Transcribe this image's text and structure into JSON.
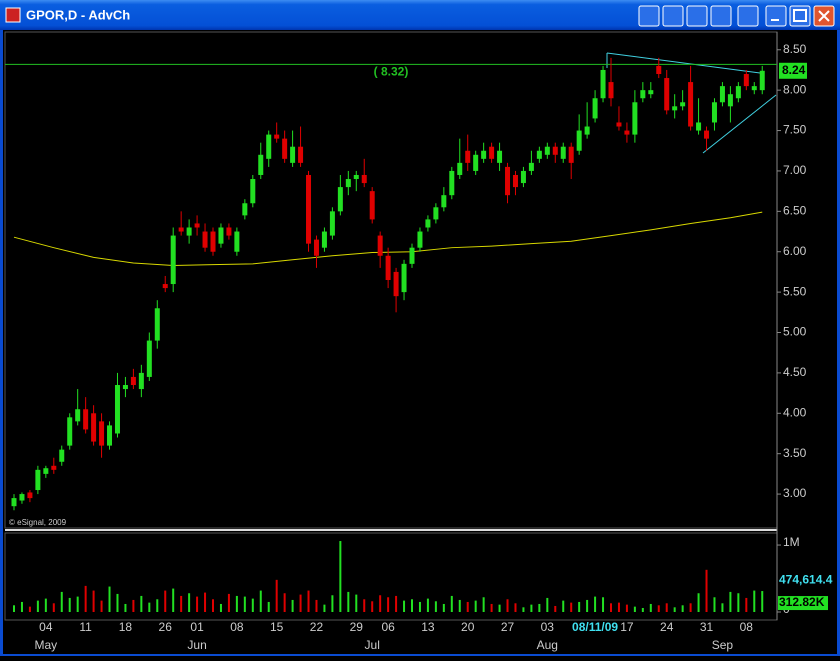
{
  "window_title": "GPOR,D - AdvCh",
  "chart_data": {
    "type": "candlestick",
    "watermark": "© eSignal, 2009",
    "up_color": "#22e022",
    "down_color": "#e00000",
    "categories": [
      null,
      null,
      null,
      null,
      "04",
      null,
      null,
      null,
      null,
      "11",
      null,
      null,
      null,
      null,
      "18",
      null,
      null,
      null,
      null,
      "26",
      null,
      null,
      null,
      "01",
      null,
      null,
      null,
      null,
      "08",
      null,
      null,
      null,
      null,
      "15",
      null,
      null,
      null,
      null,
      "22",
      null,
      null,
      null,
      null,
      "29",
      null,
      null,
      null,
      "06",
      null,
      null,
      null,
      null,
      "13",
      null,
      null,
      null,
      null,
      "20",
      null,
      null,
      null,
      null,
      "27",
      null,
      null,
      null,
      null,
      "03",
      null,
      null,
      null,
      null,
      null,
      "08/11/09",
      null,
      null,
      null,
      "17",
      null,
      null,
      null,
      null,
      "24",
      null,
      null,
      null,
      null,
      "31",
      null,
      null,
      null,
      null,
      "08",
      null,
      null
    ],
    "months": [
      null,
      null,
      null,
      null,
      "May",
      null,
      null,
      null,
      null,
      null,
      null,
      null,
      null,
      null,
      null,
      null,
      null,
      null,
      null,
      null,
      null,
      null,
      null,
      "Jun",
      null,
      null,
      null,
      null,
      null,
      null,
      null,
      null,
      null,
      null,
      null,
      null,
      null,
      null,
      null,
      null,
      null,
      null,
      null,
      null,
      null,
      "Jul",
      null,
      null,
      null,
      null,
      null,
      null,
      null,
      null,
      null,
      null,
      null,
      null,
      null,
      null,
      null,
      null,
      null,
      null,
      null,
      null,
      null,
      "Aug",
      null,
      null,
      null,
      null,
      null,
      null,
      null,
      null,
      null,
      null,
      null,
      null,
      null,
      null,
      null,
      null,
      null,
      null,
      null,
      null,
      null,
      "Sep",
      null,
      null,
      null,
      null,
      null
    ],
    "ohlc": [
      [
        2.85,
        3.0,
        2.8,
        2.95
      ],
      [
        2.92,
        3.02,
        2.88,
        3.0
      ],
      [
        3.02,
        3.05,
        2.9,
        2.95
      ],
      [
        3.05,
        3.35,
        3.0,
        3.3
      ],
      [
        3.25,
        3.35,
        3.2,
        3.32
      ],
      [
        3.35,
        3.45,
        3.25,
        3.3
      ],
      [
        3.4,
        3.6,
        3.35,
        3.55
      ],
      [
        3.6,
        4.0,
        3.55,
        3.95
      ],
      [
        3.9,
        4.3,
        3.85,
        4.05
      ],
      [
        4.05,
        4.2,
        3.75,
        3.8
      ],
      [
        4.0,
        4.1,
        3.6,
        3.65
      ],
      [
        3.9,
        4.0,
        3.45,
        3.6
      ],
      [
        3.6,
        3.9,
        3.55,
        3.85
      ],
      [
        3.75,
        4.5,
        3.7,
        4.35
      ],
      [
        4.3,
        4.45,
        4.2,
        4.35
      ],
      [
        4.45,
        4.55,
        4.3,
        4.35
      ],
      [
        4.3,
        4.6,
        4.2,
        4.5
      ],
      [
        4.45,
        5.0,
        4.4,
        4.9
      ],
      [
        4.9,
        5.4,
        4.8,
        5.3
      ],
      [
        5.6,
        5.7,
        5.5,
        5.55
      ],
      [
        5.6,
        6.3,
        5.5,
        6.2
      ],
      [
        6.3,
        6.5,
        6.2,
        6.25
      ],
      [
        6.2,
        6.4,
        6.1,
        6.3
      ],
      [
        6.35,
        6.45,
        6.2,
        6.3
      ],
      [
        6.25,
        6.35,
        6.0,
        6.05
      ],
      [
        6.25,
        6.3,
        5.95,
        6.0
      ],
      [
        6.1,
        6.35,
        6.05,
        6.3
      ],
      [
        6.3,
        6.35,
        6.15,
        6.2
      ],
      [
        6.0,
        6.3,
        5.95,
        6.25
      ],
      [
        6.45,
        6.65,
        6.4,
        6.6
      ],
      [
        6.6,
        6.95,
        6.55,
        6.9
      ],
      [
        6.95,
        7.35,
        6.9,
        7.2
      ],
      [
        7.15,
        7.5,
        7.05,
        7.45
      ],
      [
        7.45,
        7.6,
        7.35,
        7.4
      ],
      [
        7.4,
        7.5,
        7.1,
        7.15
      ],
      [
        7.1,
        7.5,
        7.05,
        7.3
      ],
      [
        7.3,
        7.55,
        7.05,
        7.1
      ],
      [
        6.95,
        7.0,
        6.0,
        6.1
      ],
      [
        6.15,
        6.2,
        5.8,
        5.95
      ],
      [
        6.05,
        6.3,
        6.0,
        6.25
      ],
      [
        6.2,
        6.55,
        6.15,
        6.5
      ],
      [
        6.5,
        6.95,
        6.45,
        6.8
      ],
      [
        6.8,
        7.0,
        6.7,
        6.9
      ],
      [
        6.9,
        7.0,
        6.75,
        6.95
      ],
      [
        6.95,
        7.15,
        6.8,
        6.85
      ],
      [
        6.75,
        6.8,
        6.35,
        6.4
      ],
      [
        6.2,
        6.25,
        5.8,
        5.95
      ],
      [
        5.95,
        6.05,
        5.55,
        5.65
      ],
      [
        5.75,
        5.8,
        5.25,
        5.45
      ],
      [
        5.5,
        5.9,
        5.4,
        5.85
      ],
      [
        5.85,
        6.1,
        5.8,
        6.05
      ],
      [
        6.05,
        6.3,
        6.0,
        6.25
      ],
      [
        6.3,
        6.45,
        6.25,
        6.4
      ],
      [
        6.4,
        6.6,
        6.35,
        6.55
      ],
      [
        6.55,
        6.8,
        6.5,
        6.7
      ],
      [
        6.7,
        7.05,
        6.65,
        7.0
      ],
      [
        6.95,
        7.4,
        6.9,
        7.1
      ],
      [
        7.25,
        7.45,
        7.0,
        7.1
      ],
      [
        7.0,
        7.25,
        6.95,
        7.2
      ],
      [
        7.15,
        7.35,
        7.1,
        7.25
      ],
      [
        7.3,
        7.35,
        7.1,
        7.15
      ],
      [
        7.1,
        7.35,
        7.0,
        7.25
      ],
      [
        7.05,
        7.1,
        6.6,
        6.7
      ],
      [
        6.95,
        7.0,
        6.7,
        6.8
      ],
      [
        6.85,
        7.05,
        6.8,
        7.0
      ],
      [
        7.0,
        7.25,
        6.95,
        7.1
      ],
      [
        7.15,
        7.3,
        7.1,
        7.25
      ],
      [
        7.2,
        7.35,
        7.15,
        7.3
      ],
      [
        7.3,
        7.35,
        7.1,
        7.2
      ],
      [
        7.15,
        7.35,
        7.1,
        7.3
      ],
      [
        7.3,
        7.35,
        6.9,
        7.1
      ],
      [
        7.25,
        7.7,
        7.2,
        7.5
      ],
      [
        7.45,
        7.85,
        7.4,
        7.55
      ],
      [
        7.65,
        8.0,
        7.6,
        7.9
      ],
      [
        7.9,
        8.3,
        7.85,
        8.25
      ],
      [
        8.1,
        8.4,
        7.8,
        7.9
      ],
      [
        7.6,
        7.8,
        7.5,
        7.55
      ],
      [
        7.5,
        7.6,
        7.35,
        7.45
      ],
      [
        7.45,
        8.0,
        7.35,
        7.85
      ],
      [
        7.9,
        8.1,
        7.85,
        8.0
      ],
      [
        7.95,
        8.1,
        7.9,
        8.0
      ],
      [
        8.3,
        8.4,
        8.15,
        8.2
      ],
      [
        8.15,
        8.25,
        7.7,
        7.75
      ],
      [
        7.75,
        7.95,
        7.65,
        7.8
      ],
      [
        7.8,
        8.0,
        7.75,
        7.85
      ],
      [
        8.1,
        8.3,
        7.5,
        7.55
      ],
      [
        7.5,
        7.9,
        7.45,
        7.6
      ],
      [
        7.5,
        7.55,
        7.25,
        7.4
      ],
      [
        7.6,
        7.9,
        7.5,
        7.85
      ],
      [
        7.85,
        8.1,
        7.8,
        8.05
      ],
      [
        7.8,
        8.05,
        7.6,
        7.95
      ],
      [
        7.9,
        8.1,
        7.85,
        8.05
      ],
      [
        8.2,
        8.25,
        8.0,
        8.05
      ],
      [
        8.0,
        8.1,
        7.95,
        8.05
      ],
      [
        8.0,
        8.3,
        7.95,
        8.24
      ]
    ],
    "ylim": [
      2.58,
      8.72
    ],
    "yticks": [
      {
        "value": 3,
        "label": "3.00"
      },
      {
        "value": 3.5,
        "label": "3.50"
      },
      {
        "value": 4,
        "label": "4.00"
      },
      {
        "value": 4.5,
        "label": "4.50"
      },
      {
        "value": 5,
        "label": "5.00"
      },
      {
        "value": 5.5,
        "label": "5.50"
      },
      {
        "value": 6,
        "label": "6.00"
      },
      {
        "value": 6.5,
        "label": "6.50"
      },
      {
        "value": 7,
        "label": "7.00"
      },
      {
        "value": 7.5,
        "label": "7.50"
      },
      {
        "value": 8,
        "label": "8.00"
      },
      {
        "value": 8.5,
        "label": "8.50"
      }
    ],
    "moving_average": {
      "color": "#d8d800",
      "x": [
        0,
        5,
        10,
        15,
        20,
        25,
        30,
        35,
        40,
        45,
        50,
        55,
        60,
        65,
        70,
        75,
        80,
        85,
        90,
        94
      ],
      "values": [
        6.18,
        6.05,
        5.93,
        5.86,
        5.83,
        5.84,
        5.85,
        5.9,
        5.95,
        5.99,
        6.0,
        6.05,
        6.07,
        6.1,
        6.13,
        6.2,
        6.27,
        6.35,
        6.42,
        6.49
      ]
    },
    "level": {
      "value": 8.32,
      "label": "( 8.32)",
      "color": "#22c022"
    },
    "volume": {
      "values": [
        100000,
        150000,
        80000,
        170000,
        200000,
        130000,
        300000,
        210000,
        230000,
        390000,
        320000,
        170000,
        380000,
        270000,
        120000,
        180000,
        240000,
        140000,
        190000,
        320000,
        350000,
        240000,
        280000,
        230000,
        290000,
        190000,
        120000,
        270000,
        240000,
        230000,
        200000,
        320000,
        150000,
        480000,
        280000,
        180000,
        260000,
        320000,
        180000,
        110000,
        250000,
        1060000,
        300000,
        260000,
        190000,
        160000,
        250000,
        220000,
        240000,
        170000,
        190000,
        150000,
        200000,
        160000,
        120000,
        240000,
        180000,
        150000,
        170000,
        220000,
        120000,
        110000,
        190000,
        130000,
        70000,
        110000,
        120000,
        210000,
        90000,
        170000,
        140000,
        150000,
        180000,
        230000,
        220000,
        130000,
        140000,
        110000,
        80000,
        60000,
        120000,
        100000,
        130000,
        70000,
        100000,
        130000,
        280000,
        630000,
        220000,
        130000,
        300000,
        280000,
        210000,
        320000,
        312820
      ],
      "last_label": "312.82K",
      "average": {
        "value": 474614.4,
        "label": "474,614.4"
      },
      "ylim": [
        0,
        1150000
      ],
      "yticks": [
        {
          "value": 1000000,
          "label": "1M"
        },
        0
      ]
    }
  }
}
